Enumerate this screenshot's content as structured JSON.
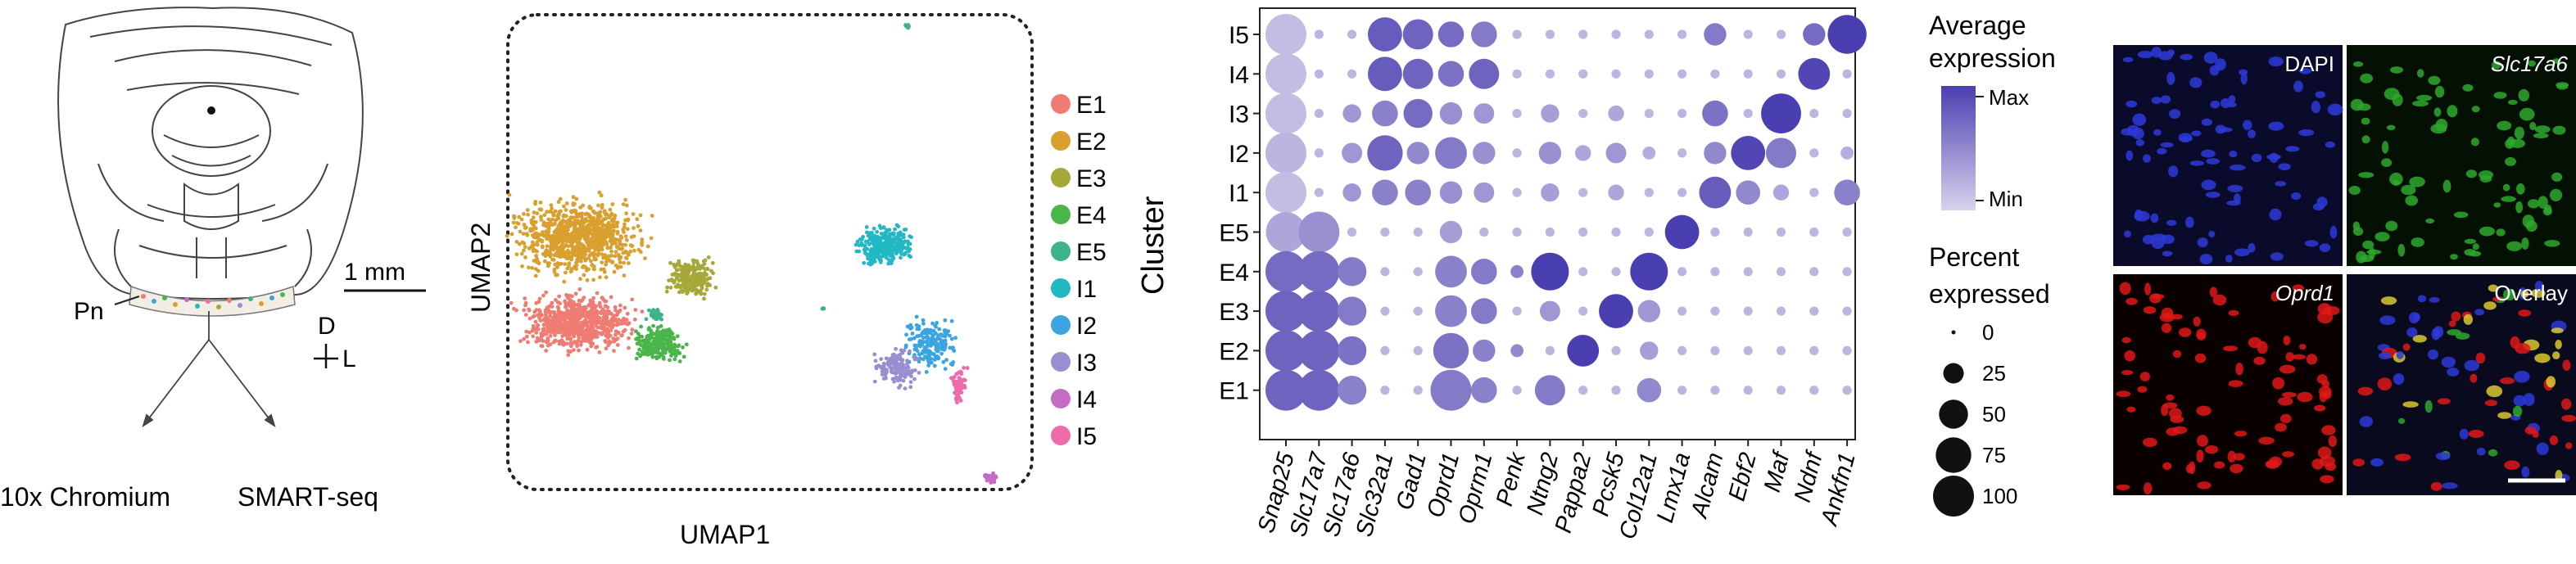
{
  "panel_a": {
    "scale_bar_label": "1 mm",
    "region_label": "Pn",
    "axis_dorsal": "D",
    "axis_lateral": "L",
    "method_left": "10x Chromium",
    "method_right": "SMART-seq"
  },
  "panel_b": {
    "xlabel": "UMAP1",
    "ylabel": "UMAP2",
    "legend": [
      {
        "label": "E1",
        "color": "#ef7c73"
      },
      {
        "label": "E2",
        "color": "#d9a030"
      },
      {
        "label": "E3",
        "color": "#a6a83a"
      },
      {
        "label": "E4",
        "color": "#4ab54a"
      },
      {
        "label": "E5",
        "color": "#3cb38a"
      },
      {
        "label": "I1",
        "color": "#22b8c4"
      },
      {
        "label": "I2",
        "color": "#3aa5e0"
      },
      {
        "label": "I3",
        "color": "#9b8ed0"
      },
      {
        "label": "I4",
        "color": "#c46bc4"
      },
      {
        "label": "I5",
        "color": "#ef6aa8"
      }
    ]
  },
  "chart_data": {
    "type": "dotplot",
    "ylabel": "Cluster",
    "clusters": [
      "I5",
      "I4",
      "I3",
      "I2",
      "I1",
      "E5",
      "E4",
      "E3",
      "E2",
      "E1"
    ],
    "genes": [
      "Snap25",
      "Slc17a7",
      "Slc17a6",
      "Slc32a1",
      "Gad1",
      "Oprd1",
      "Oprm1",
      "Penk",
      "Ntng2",
      "Pappa2",
      "Pcsk5",
      "Col12a1",
      "Lmx1a",
      "Alcam",
      "Ebf2",
      "Maf",
      "Ndnf",
      "Ankfn1"
    ],
    "percent_expressed": [
      [
        100,
        5,
        5,
        70,
        55,
        40,
        40,
        5,
        5,
        5,
        5,
        5,
        5,
        30,
        5,
        5,
        30,
        90
      ],
      [
        100,
        5,
        5,
        70,
        55,
        40,
        55,
        5,
        5,
        5,
        5,
        5,
        5,
        5,
        5,
        5,
        60,
        5
      ],
      [
        100,
        5,
        20,
        40,
        50,
        30,
        25,
        5,
        20,
        5,
        15,
        5,
        5,
        40,
        5,
        95,
        5,
        5
      ],
      [
        100,
        5,
        25,
        75,
        30,
        60,
        30,
        5,
        30,
        15,
        25,
        10,
        5,
        30,
        70,
        55,
        5,
        10
      ],
      [
        100,
        5,
        20,
        40,
        40,
        30,
        25,
        5,
        20,
        5,
        15,
        5,
        5,
        60,
        35,
        15,
        5,
        40
      ],
      [
        95,
        100,
        5,
        5,
        5,
        30,
        5,
        5,
        5,
        5,
        5,
        5,
        70,
        5,
        5,
        5,
        5,
        5
      ],
      [
        100,
        100,
        50,
        5,
        5,
        60,
        40,
        10,
        85,
        5,
        5,
        85,
        5,
        5,
        5,
        5,
        5,
        5
      ],
      [
        100,
        100,
        50,
        5,
        5,
        60,
        40,
        5,
        25,
        5,
        70,
        30,
        5,
        5,
        5,
        5,
        5,
        5
      ],
      [
        100,
        100,
        50,
        5,
        5,
        75,
        30,
        10,
        5,
        60,
        5,
        20,
        5,
        5,
        5,
        5,
        5,
        5
      ],
      [
        100,
        100,
        50,
        5,
        5,
        100,
        40,
        5,
        55,
        5,
        5,
        35,
        5,
        5,
        5,
        5,
        5,
        5
      ]
    ],
    "avg_expression": [
      [
        0.15,
        0.2,
        0.2,
        0.8,
        0.75,
        0.7,
        0.6,
        0.2,
        0.2,
        0.2,
        0.2,
        0.2,
        0.2,
        0.6,
        0.2,
        0.2,
        0.7,
        1.0
      ],
      [
        0.15,
        0.2,
        0.2,
        0.8,
        0.75,
        0.65,
        0.75,
        0.2,
        0.2,
        0.2,
        0.2,
        0.2,
        0.2,
        0.2,
        0.2,
        0.2,
        0.95,
        0.2
      ],
      [
        0.15,
        0.2,
        0.4,
        0.55,
        0.7,
        0.45,
        0.4,
        0.2,
        0.35,
        0.2,
        0.3,
        0.2,
        0.2,
        0.65,
        0.2,
        1.0,
        0.2,
        0.2
      ],
      [
        0.2,
        0.2,
        0.4,
        0.75,
        0.5,
        0.6,
        0.45,
        0.2,
        0.45,
        0.3,
        0.4,
        0.25,
        0.2,
        0.5,
        0.95,
        0.6,
        0.2,
        0.25
      ],
      [
        0.15,
        0.2,
        0.4,
        0.55,
        0.55,
        0.45,
        0.4,
        0.2,
        0.35,
        0.2,
        0.3,
        0.2,
        0.2,
        0.8,
        0.5,
        0.3,
        0.2,
        0.55
      ],
      [
        0.3,
        0.45,
        0.2,
        0.2,
        0.2,
        0.35,
        0.2,
        0.2,
        0.2,
        0.2,
        0.2,
        0.2,
        1.0,
        0.2,
        0.2,
        0.2,
        0.2,
        0.2
      ],
      [
        0.7,
        0.7,
        0.6,
        0.2,
        0.2,
        0.55,
        0.6,
        0.55,
        1.0,
        0.2,
        0.2,
        1.0,
        0.2,
        0.2,
        0.2,
        0.2,
        0.2,
        0.2
      ],
      [
        0.75,
        0.75,
        0.6,
        0.2,
        0.2,
        0.55,
        0.6,
        0.2,
        0.4,
        0.2,
        1.0,
        0.4,
        0.2,
        0.2,
        0.2,
        0.2,
        0.2,
        0.2
      ],
      [
        0.75,
        0.75,
        0.65,
        0.2,
        0.2,
        0.65,
        0.55,
        0.5,
        0.2,
        1.0,
        0.2,
        0.35,
        0.2,
        0.2,
        0.2,
        0.2,
        0.2,
        0.2
      ],
      [
        0.75,
        0.75,
        0.55,
        0.2,
        0.2,
        0.6,
        0.55,
        0.2,
        0.6,
        0.2,
        0.2,
        0.5,
        0.2,
        0.2,
        0.2,
        0.2,
        0.2,
        0.2
      ]
    ],
    "color_low": "#d8d2ec",
    "color_high": "#4a3fb0",
    "color_legend": {
      "title_line1": "Average",
      "title_line2": "expression",
      "max_label": "Max",
      "min_label": "Min"
    },
    "size_legend": {
      "title_line1": "Percent",
      "title_line2": "expressed",
      "values": [
        0,
        25,
        50,
        75,
        100
      ]
    }
  },
  "panel_d": {
    "tiles": [
      {
        "label": "DAPI",
        "bg": "#0a0a2a",
        "dots": "#2d3ad8",
        "italic": false
      },
      {
        "label": "Slc17a6",
        "bg": "#041004",
        "dots": "#2ea82e",
        "italic": true
      },
      {
        "label": "Oprd1",
        "bg": "#0a0000",
        "dots": "#e01818",
        "italic": true
      },
      {
        "label": "Overlay",
        "bg": "#0a0a1e",
        "dots": "#d8c830",
        "italic": false
      }
    ]
  }
}
